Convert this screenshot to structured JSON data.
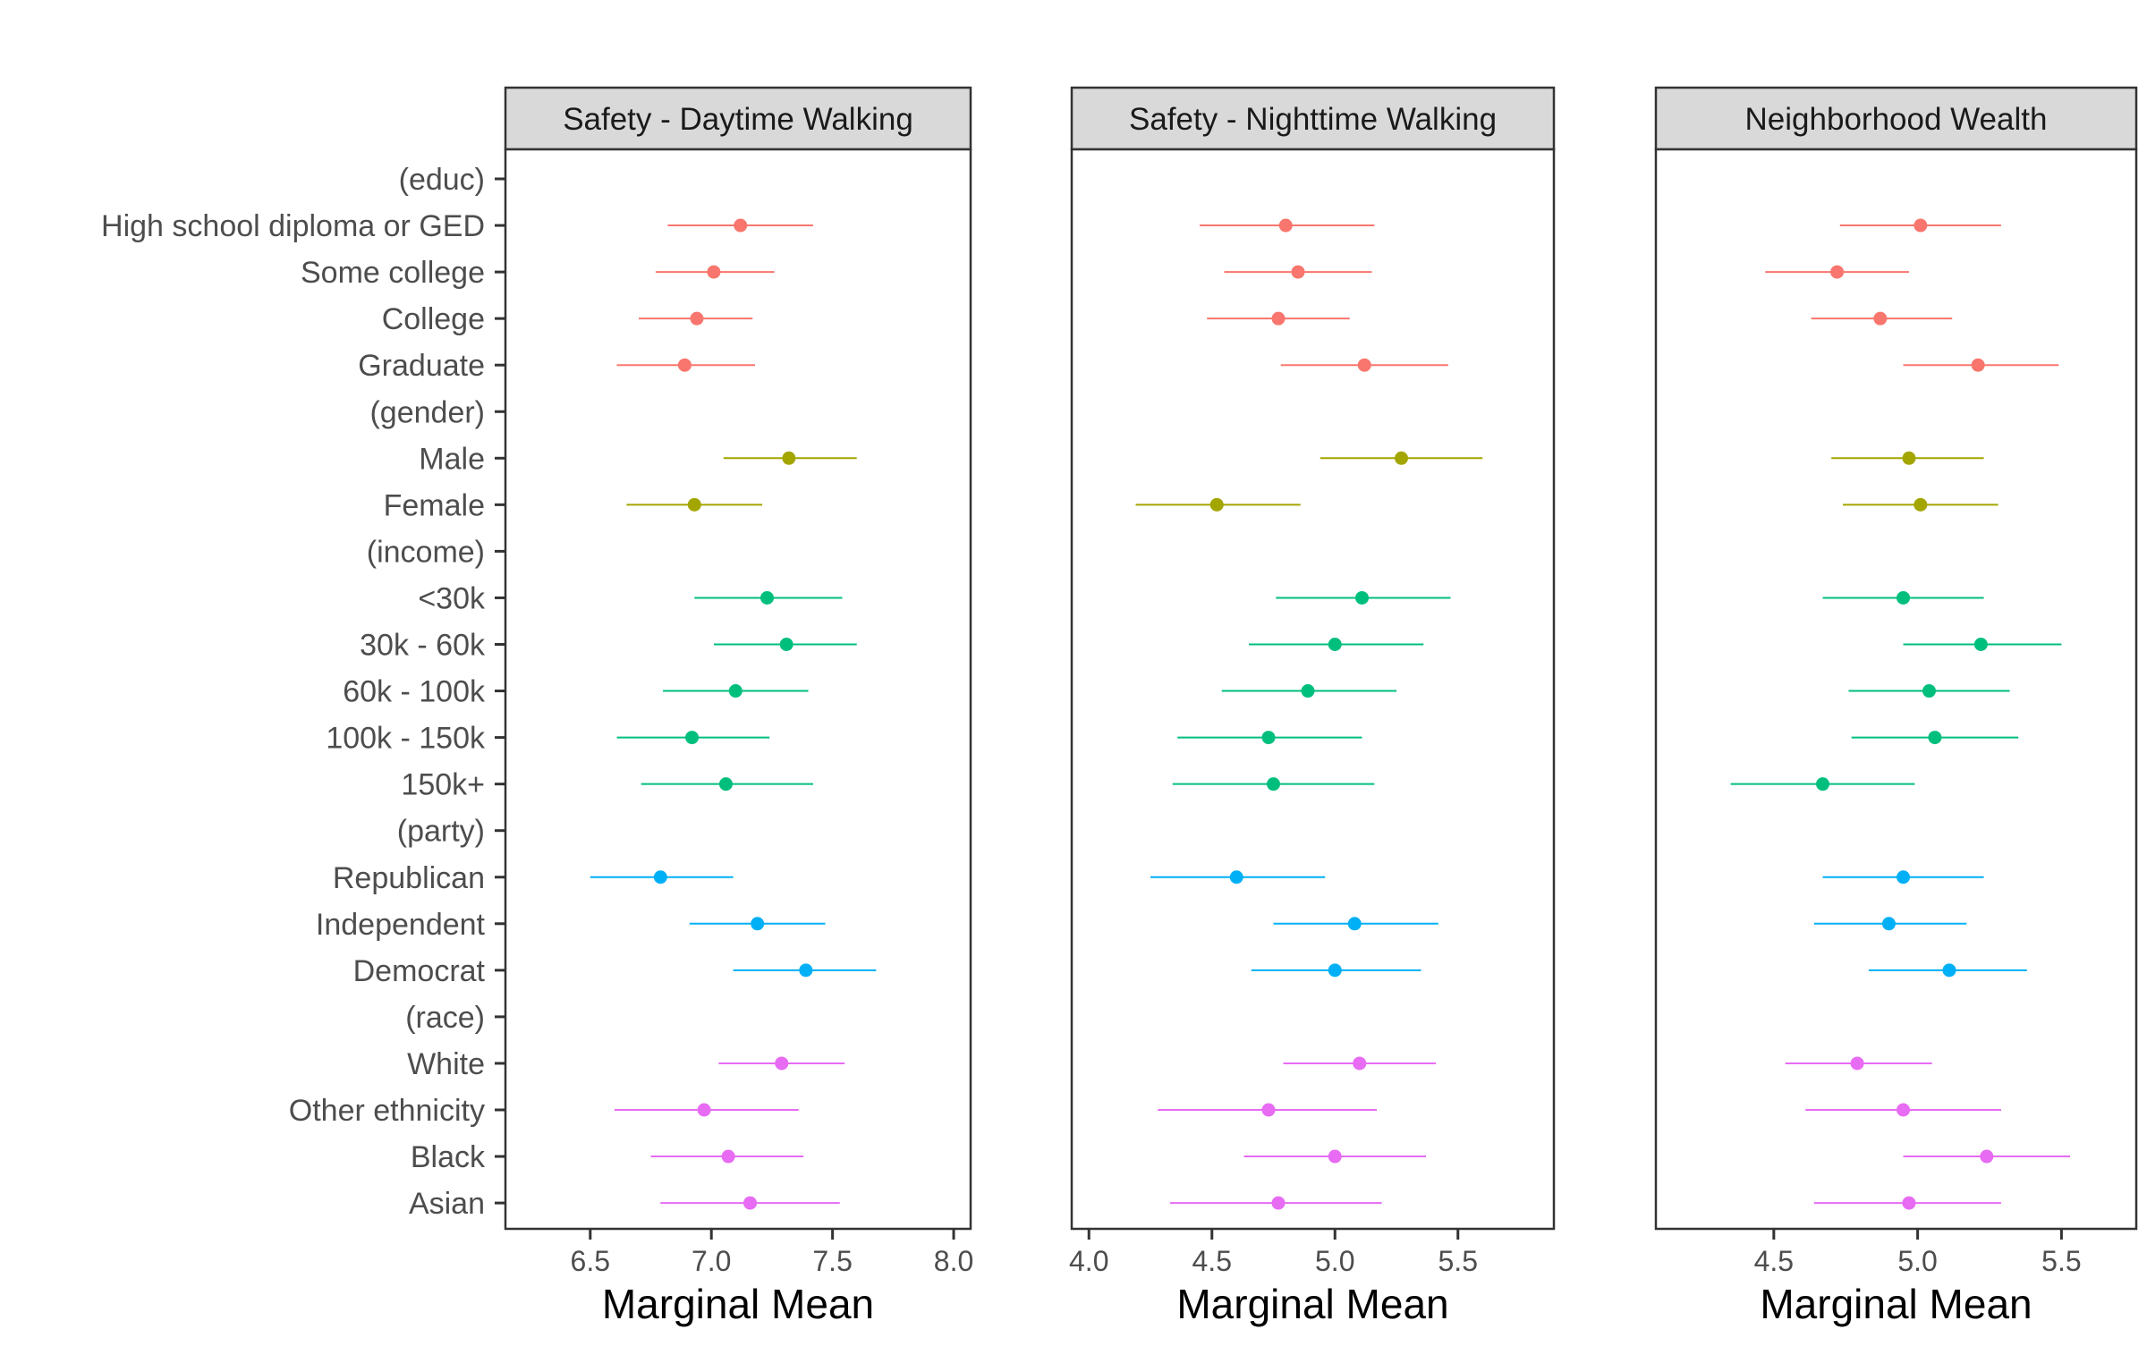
{
  "chart_data": {
    "type": "scatter",
    "subtype": "dot-and-whisker, faceted",
    "grid": false,
    "legend": "none",
    "theme": "bw",
    "categories": [
      "(educ)",
      "High school diploma or GED",
      "Some college",
      "College",
      "Graduate",
      "(gender)",
      "Male",
      "Female",
      "(income)",
      "<30k",
      "30k - 60k",
      "60k - 100k",
      "100k - 150k",
      "150k+",
      "(party)",
      "Republican",
      "Independent",
      "Democrat",
      "(race)",
      "White",
      "Other ethnicity",
      "Black",
      "Asian"
    ],
    "groups": {
      "educ": {
        "color": "#F8766D",
        "items": [
          "High school diploma or GED",
          "Some college",
          "College",
          "Graduate"
        ]
      },
      "gender": {
        "color": "#A3A500",
        "items": [
          "Male",
          "Female"
        ]
      },
      "income": {
        "color": "#00BF7D",
        "items": [
          "<30k",
          "30k - 60k",
          "60k - 100k",
          "100k - 150k",
          "150k+"
        ]
      },
      "party": {
        "color": "#00B0F6",
        "items": [
          "Republican",
          "Independent",
          "Democrat"
        ]
      },
      "race": {
        "color": "#E76BF3",
        "items": [
          "White",
          "Other ethnicity",
          "Black",
          "Asian"
        ]
      }
    },
    "panels": [
      {
        "title": "Safety - Daytime Walking",
        "xlabel": "Marginal Mean",
        "xlim": [
          6.15,
          8.07
        ],
        "xticks": [
          "6.5",
          "7.0",
          "7.5",
          "8.0"
        ],
        "points": [
          {
            "label": "High school diploma or GED",
            "group": "educ",
            "estimate": 7.12,
            "lower": 6.82,
            "upper": 7.42
          },
          {
            "label": "Some college",
            "group": "educ",
            "estimate": 7.01,
            "lower": 6.77,
            "upper": 7.26
          },
          {
            "label": "College",
            "group": "educ",
            "estimate": 6.94,
            "lower": 6.7,
            "upper": 7.17
          },
          {
            "label": "Graduate",
            "group": "educ",
            "estimate": 6.89,
            "lower": 6.61,
            "upper": 7.18
          },
          {
            "label": "Male",
            "group": "gender",
            "estimate": 7.32,
            "lower": 7.05,
            "upper": 7.6
          },
          {
            "label": "Female",
            "group": "gender",
            "estimate": 6.93,
            "lower": 6.65,
            "upper": 7.21
          },
          {
            "label": "<30k",
            "group": "income",
            "estimate": 7.23,
            "lower": 6.93,
            "upper": 7.54
          },
          {
            "label": "30k - 60k",
            "group": "income",
            "estimate": 7.31,
            "lower": 7.01,
            "upper": 7.6
          },
          {
            "label": "60k - 100k",
            "group": "income",
            "estimate": 7.1,
            "lower": 6.8,
            "upper": 7.4
          },
          {
            "label": "100k - 150k",
            "group": "income",
            "estimate": 6.92,
            "lower": 6.61,
            "upper": 7.24
          },
          {
            "label": "150k+",
            "group": "income",
            "estimate": 7.06,
            "lower": 6.71,
            "upper": 7.42
          },
          {
            "label": "Republican",
            "group": "party",
            "estimate": 6.79,
            "lower": 6.5,
            "upper": 7.09
          },
          {
            "label": "Independent",
            "group": "party",
            "estimate": 7.19,
            "lower": 6.91,
            "upper": 7.47
          },
          {
            "label": "Democrat",
            "group": "party",
            "estimate": 7.39,
            "lower": 7.09,
            "upper": 7.68
          },
          {
            "label": "White",
            "group": "race",
            "estimate": 7.29,
            "lower": 7.03,
            "upper": 7.55
          },
          {
            "label": "Other ethnicity",
            "group": "race",
            "estimate": 6.97,
            "lower": 6.6,
            "upper": 7.36
          },
          {
            "label": "Black",
            "group": "race",
            "estimate": 7.07,
            "lower": 6.75,
            "upper": 7.38
          },
          {
            "label": "Asian",
            "group": "race",
            "estimate": 7.16,
            "lower": 6.79,
            "upper": 7.53
          }
        ]
      },
      {
        "title": "Safety - Nighttime Walking",
        "xlabel": "Marginal Mean",
        "xlim": [
          3.93,
          5.89
        ],
        "xticks": [
          "4.0",
          "4.5",
          "5.0",
          "5.5"
        ],
        "points": [
          {
            "label": "High school diploma or GED",
            "group": "educ",
            "estimate": 4.8,
            "lower": 4.45,
            "upper": 5.16
          },
          {
            "label": "Some college",
            "group": "educ",
            "estimate": 4.85,
            "lower": 4.55,
            "upper": 5.15
          },
          {
            "label": "College",
            "group": "educ",
            "estimate": 4.77,
            "lower": 4.48,
            "upper": 5.06
          },
          {
            "label": "Graduate",
            "group": "educ",
            "estimate": 5.12,
            "lower": 4.78,
            "upper": 5.46
          },
          {
            "label": "Male",
            "group": "gender",
            "estimate": 5.27,
            "lower": 4.94,
            "upper": 5.6
          },
          {
            "label": "Female",
            "group": "gender",
            "estimate": 4.52,
            "lower": 4.19,
            "upper": 4.86
          },
          {
            "label": "<30k",
            "group": "income",
            "estimate": 5.11,
            "lower": 4.76,
            "upper": 5.47
          },
          {
            "label": "30k - 60k",
            "group": "income",
            "estimate": 5.0,
            "lower": 4.65,
            "upper": 5.36
          },
          {
            "label": "60k - 100k",
            "group": "income",
            "estimate": 4.89,
            "lower": 4.54,
            "upper": 5.25
          },
          {
            "label": "100k - 150k",
            "group": "income",
            "estimate": 4.73,
            "lower": 4.36,
            "upper": 5.11
          },
          {
            "label": "150k+",
            "group": "income",
            "estimate": 4.75,
            "lower": 4.34,
            "upper": 5.16
          },
          {
            "label": "Republican",
            "group": "party",
            "estimate": 4.6,
            "lower": 4.25,
            "upper": 4.96
          },
          {
            "label": "Independent",
            "group": "party",
            "estimate": 5.08,
            "lower": 4.75,
            "upper": 5.42
          },
          {
            "label": "Democrat",
            "group": "party",
            "estimate": 5.0,
            "lower": 4.66,
            "upper": 5.35
          },
          {
            "label": "White",
            "group": "race",
            "estimate": 5.1,
            "lower": 4.79,
            "upper": 5.41
          },
          {
            "label": "Other ethnicity",
            "group": "race",
            "estimate": 4.73,
            "lower": 4.28,
            "upper": 5.17
          },
          {
            "label": "Black",
            "group": "race",
            "estimate": 5.0,
            "lower": 4.63,
            "upper": 5.37
          },
          {
            "label": "Asian",
            "group": "race",
            "estimate": 4.77,
            "lower": 4.33,
            "upper": 5.19
          }
        ]
      },
      {
        "title": "Neighborhood Wealth",
        "xlabel": "Marginal Mean",
        "xlim": [
          4.09,
          5.76
        ],
        "xticks": [
          "4.5",
          "5.0",
          "5.5"
        ],
        "points": [
          {
            "label": "High school diploma or GED",
            "group": "educ",
            "estimate": 5.01,
            "lower": 4.73,
            "upper": 5.29
          },
          {
            "label": "Some college",
            "group": "educ",
            "estimate": 4.72,
            "lower": 4.47,
            "upper": 4.97
          },
          {
            "label": "College",
            "group": "educ",
            "estimate": 4.87,
            "lower": 4.63,
            "upper": 5.12
          },
          {
            "label": "Graduate",
            "group": "educ",
            "estimate": 5.21,
            "lower": 4.95,
            "upper": 5.49
          },
          {
            "label": "Male",
            "group": "gender",
            "estimate": 4.97,
            "lower": 4.7,
            "upper": 5.23
          },
          {
            "label": "Female",
            "group": "gender",
            "estimate": 5.01,
            "lower": 4.74,
            "upper": 5.28
          },
          {
            "label": "<30k",
            "group": "income",
            "estimate": 4.95,
            "lower": 4.67,
            "upper": 5.23
          },
          {
            "label": "30k - 60k",
            "group": "income",
            "estimate": 5.22,
            "lower": 4.95,
            "upper": 5.5
          },
          {
            "label": "60k - 100k",
            "group": "income",
            "estimate": 5.04,
            "lower": 4.76,
            "upper": 5.32
          },
          {
            "label": "100k - 150k",
            "group": "income",
            "estimate": 5.06,
            "lower": 4.77,
            "upper": 5.35
          },
          {
            "label": "150k+",
            "group": "income",
            "estimate": 4.67,
            "lower": 4.35,
            "upper": 4.99
          },
          {
            "label": "Republican",
            "group": "party",
            "estimate": 4.95,
            "lower": 4.67,
            "upper": 5.23
          },
          {
            "label": "Independent",
            "group": "party",
            "estimate": 4.9,
            "lower": 4.64,
            "upper": 5.17
          },
          {
            "label": "Democrat",
            "group": "party",
            "estimate": 5.11,
            "lower": 4.83,
            "upper": 5.38
          },
          {
            "label": "White",
            "group": "race",
            "estimate": 4.79,
            "lower": 4.54,
            "upper": 5.05
          },
          {
            "label": "Other ethnicity",
            "group": "race",
            "estimate": 4.95,
            "lower": 4.61,
            "upper": 5.29
          },
          {
            "label": "Black",
            "group": "race",
            "estimate": 5.24,
            "lower": 4.95,
            "upper": 5.53
          },
          {
            "label": "Asian",
            "group": "race",
            "estimate": 4.97,
            "lower": 4.64,
            "upper": 5.29
          }
        ]
      }
    ]
  }
}
